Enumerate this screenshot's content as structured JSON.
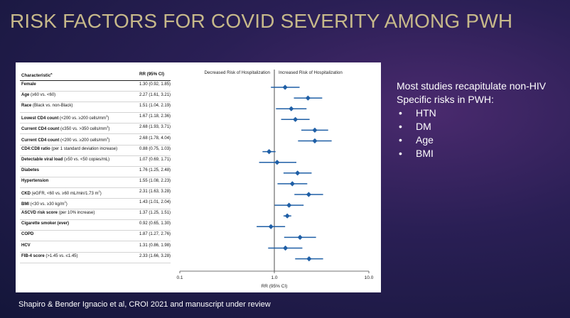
{
  "title": "RISK FACTORS FOR COVID SEVERITY AMONG PWH",
  "table": {
    "col_characteristic": "Characteristic",
    "col_characteristic_sup": "a",
    "col_rr": "RR (95% CI)"
  },
  "rows": [
    {
      "label": "Female",
      "detail": "",
      "sup": "",
      "rr_text": "1.30 (0.92, 1.85)"
    },
    {
      "label": "Age",
      "detail": " (≥60 vs. <60)",
      "sup": "",
      "rr_text": "2.27 (1.61, 3.21)"
    },
    {
      "label": "Race",
      "detail": " (Black vs. non-Black)",
      "sup": "",
      "rr_text": "1.51 (1.04, 2.19)"
    },
    {
      "label": "Lowest CD4 count",
      "detail": " (<200 vs. ≥200 cells/mm",
      "sup": "3",
      "detail_end": ")",
      "rr_text": "1.67 (1.18, 2.36)"
    },
    {
      "label": "Current CD4 count",
      "detail": " (≤350 vs. >350 cells/mm",
      "sup": "3",
      "detail_end": ")",
      "rr_text": "2.68 (1.93, 3.71)"
    },
    {
      "label": "Current CD4 count",
      "detail": " (<200 vs. ≥200 cells/mm",
      "sup": "3",
      "detail_end": ")",
      "rr_text": "2.68 (1.78, 4.04)"
    },
    {
      "label": "CD4:CD8 ratio",
      "detail": " (per 1 standard deviation increase)",
      "sup": "",
      "rr_text": "0.88 (0.75, 1.03)"
    },
    {
      "label": "Detectable viral load",
      "detail": " (≥50 vs. <50 copies/mL)",
      "sup": "",
      "rr_text": "1.07 (0.69, 1.71)"
    },
    {
      "label": "Diabetes",
      "detail": "",
      "sup": "",
      "rr_text": "1.76 (1.25, 2.48)"
    },
    {
      "label": "Hypertension",
      "detail": "",
      "sup": "",
      "rr_text": "1.55 (1.08, 2.23)"
    },
    {
      "label": "CKD",
      "detail": " (eGFR, <60 vs. ≥60 mL/min/1.73 m",
      "sup": "2",
      "detail_end": ")",
      "rr_text": "2.31 (1.63, 3.28)"
    },
    {
      "label": "BMI",
      "detail": " (<30 vs. ≥30 kg/m",
      "sup": "2",
      "detail_end": ")",
      "rr_text": "1.43 (1.01, 2.04)"
    },
    {
      "label": "ASCVD risk score",
      "detail": " (per 10% increase)",
      "sup": "",
      "rr_text": "1.37 (1.25, 1.51)"
    },
    {
      "label": "Cigarette smoker (ever)",
      "detail": "",
      "sup": "",
      "rr_text": "0.92 (0.65, 1.30)"
    },
    {
      "label": "COPD",
      "detail": "",
      "sup": "",
      "rr_text": "1.87 (1.27, 2.76)"
    },
    {
      "label": "HCV",
      "detail": "",
      "sup": "",
      "rr_text": "1.31 (0.86, 1.98)"
    },
    {
      "label": "FIB-4 score",
      "detail": " (>1.45 vs. ≤1.45)",
      "sup": "",
      "rr_text": "2.33 (1.66, 3.28)"
    }
  ],
  "chart_data": {
    "type": "forest",
    "scale": "log",
    "xlabel": "RR (95% CI)",
    "xlim": [
      0.1,
      10.0
    ],
    "xticks": [
      "0.1",
      "1.0",
      "10.0"
    ],
    "reference_line": 1.0,
    "left_header": "Decreased Risk of Hospitalization",
    "right_header": "Increased Risk of Hospitalization",
    "marker_color": "#1f5fa6",
    "points": [
      {
        "est": 1.3,
        "lo": 0.92,
        "hi": 1.85
      },
      {
        "est": 2.27,
        "lo": 1.61,
        "hi": 3.21
      },
      {
        "est": 1.51,
        "lo": 1.04,
        "hi": 2.19
      },
      {
        "est": 1.67,
        "lo": 1.18,
        "hi": 2.36
      },
      {
        "est": 2.68,
        "lo": 1.93,
        "hi": 3.71
      },
      {
        "est": 2.68,
        "lo": 1.78,
        "hi": 4.04
      },
      {
        "est": 0.88,
        "lo": 0.75,
        "hi": 1.03
      },
      {
        "est": 1.07,
        "lo": 0.69,
        "hi": 1.71
      },
      {
        "est": 1.76,
        "lo": 1.25,
        "hi": 2.48
      },
      {
        "est": 1.55,
        "lo": 1.08,
        "hi": 2.23
      },
      {
        "est": 2.31,
        "lo": 1.63,
        "hi": 3.28
      },
      {
        "est": 1.43,
        "lo": 1.01,
        "hi": 2.04
      },
      {
        "est": 1.37,
        "lo": 1.25,
        "hi": 1.51
      },
      {
        "est": 0.92,
        "lo": 0.65,
        "hi": 1.3
      },
      {
        "est": 1.87,
        "lo": 1.27,
        "hi": 2.76
      },
      {
        "est": 1.31,
        "lo": 0.86,
        "hi": 1.98
      },
      {
        "est": 2.33,
        "lo": 1.66,
        "hi": 3.28
      }
    ]
  },
  "side": {
    "heading": "Most studies recapitulate non-HIV Specific risks in PWH:",
    "bullet_glyph": "•",
    "bullets": [
      "HTN",
      "DM",
      "Age",
      "BMI"
    ]
  },
  "citation": "Shapiro & Bender Ignacio et al, CROI 2021 and manuscript under review"
}
